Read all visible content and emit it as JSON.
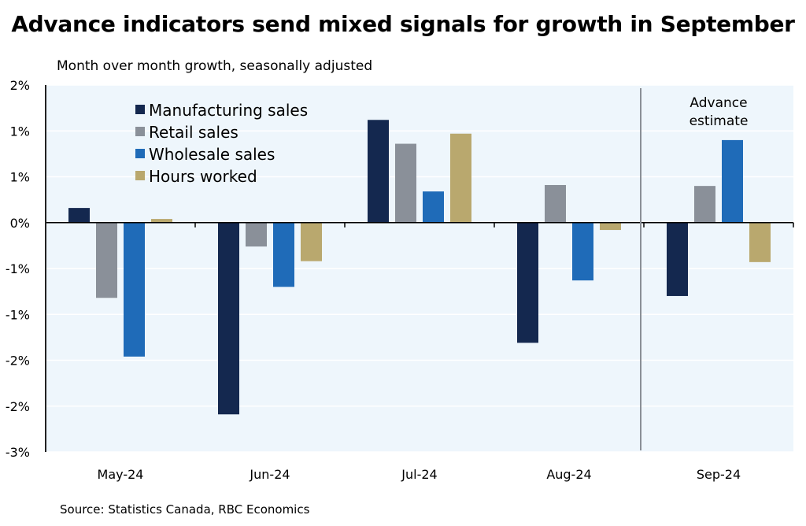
{
  "chart_data": {
    "type": "bar",
    "title": "Advance indicators send mixed signals for growth in September",
    "subtitle": "Month over month growth, seasonally adjusted",
    "xlabel": "",
    "ylabel": "",
    "categories": [
      "May-24",
      "Jun-24",
      "Jul-24",
      "Aug-24",
      "Sep-24"
    ],
    "series": [
      {
        "name": "Manufacturing sales",
        "color": "#14284f",
        "values": [
          0.16,
          -2.09,
          1.12,
          -1.31,
          -0.8
        ]
      },
      {
        "name": "Retail sales",
        "color": "#8a9099",
        "values": [
          -0.82,
          -0.26,
          0.86,
          0.41,
          0.4
        ]
      },
      {
        "name": "Wholesale sales",
        "color": "#1f6bb8",
        "values": [
          -1.46,
          -0.7,
          0.34,
          -0.63,
          0.9
        ]
      },
      {
        "name": "Hours worked",
        "color": "#b9a86e",
        "values": [
          0.04,
          -0.42,
          0.97,
          -0.08,
          -0.43
        ]
      }
    ],
    "ylim": [
      -2.5,
      1.5
    ],
    "yticks": [
      1.5,
      1.0,
      0.5,
      0.0,
      -0.5,
      -1.0,
      -1.5,
      -2.0,
      -2.5
    ],
    "ytick_labels": [
      "2%",
      "1%",
      "1%",
      "0%",
      "-1%",
      "-1%",
      "-2%",
      "-2%",
      "-3%"
    ],
    "grid": true,
    "legend_position": "top-left",
    "annotation": {
      "text_lines": [
        "Advance",
        "estimate"
      ],
      "separator_before_category": "Sep-24"
    },
    "plot_background": "#eef6fc"
  },
  "source": "Source: Statistics Canada, RBC Economics"
}
